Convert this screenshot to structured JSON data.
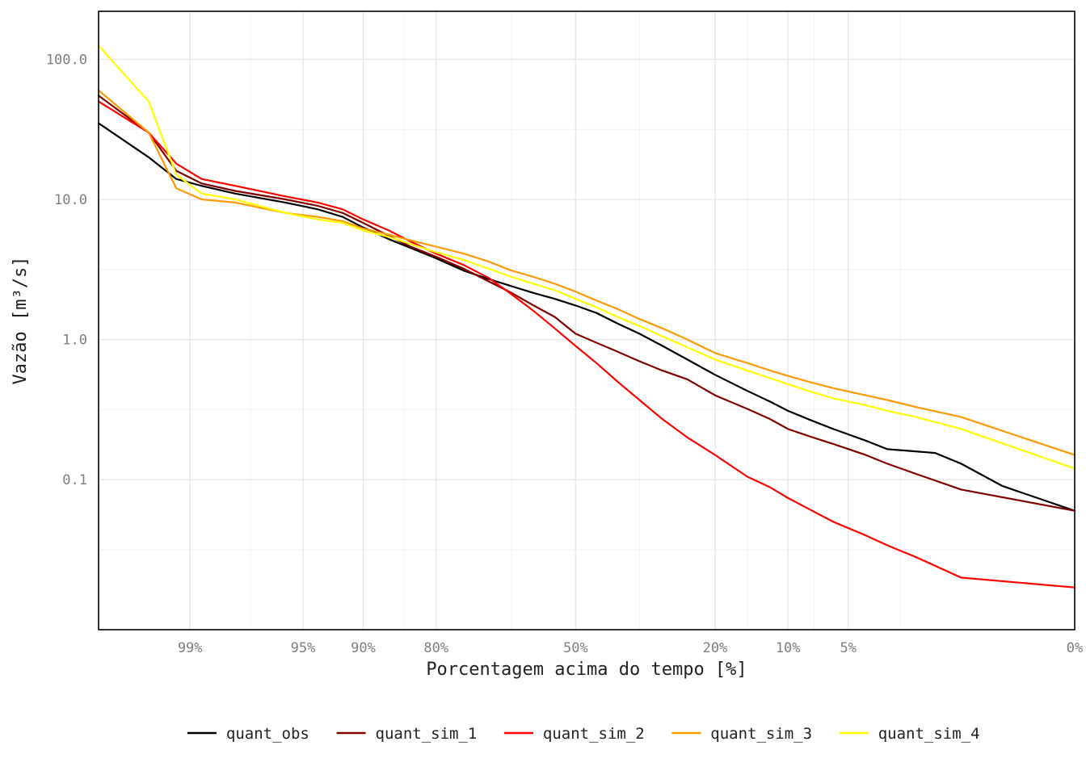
{
  "chart_data": {
    "type": "line",
    "title": "",
    "xlabel": "Porcentagem acima do tempo [%]",
    "ylabel": "Vazão [m³/s]",
    "x_scale": "normal-probability",
    "y_scale": "log10",
    "x_range": [
      99.8,
      -0.5
    ],
    "y_range": [
      0.0085,
      220
    ],
    "x_ticks": [
      {
        "value": 99,
        "label": "99%"
      },
      {
        "value": 95,
        "label": "95%"
      },
      {
        "value": 90,
        "label": "90%"
      },
      {
        "value": 80,
        "label": "80%"
      },
      {
        "value": 50,
        "label": "50%"
      },
      {
        "value": 20,
        "label": "20%"
      },
      {
        "value": 10,
        "label": "10%"
      },
      {
        "value": 5,
        "label": "5%"
      },
      {
        "value": 0,
        "label": "0%"
      }
    ],
    "x_minor_ticks": [
      97.5,
      85,
      65,
      35,
      15,
      7.5,
      2.5
    ],
    "y_ticks": [
      {
        "value": 100,
        "label": "100.0"
      },
      {
        "value": 10,
        "label": "10.0"
      },
      {
        "value": 1,
        "label": "1.0"
      },
      {
        "value": 0.1,
        "label": "0.1"
      }
    ],
    "grid": true,
    "legend_position": "bottom",
    "series": [
      {
        "name": "quant_obs",
        "color": "#000000",
        "points": [
          [
            99.8,
            35
          ],
          [
            99.5,
            20
          ],
          [
            99.2,
            14
          ],
          [
            98.8,
            12.5
          ],
          [
            98,
            11
          ],
          [
            96,
            9.5
          ],
          [
            94,
            8.5
          ],
          [
            92,
            7.5
          ],
          [
            90,
            6.3
          ],
          [
            87,
            5.2
          ],
          [
            84,
            4.5
          ],
          [
            80,
            3.8
          ],
          [
            75,
            3.1
          ],
          [
            70,
            2.7
          ],
          [
            65,
            2.4
          ],
          [
            60,
            2.15
          ],
          [
            55,
            1.95
          ],
          [
            50,
            1.75
          ],
          [
            45,
            1.55
          ],
          [
            40,
            1.3
          ],
          [
            35,
            1.1
          ],
          [
            30,
            0.9
          ],
          [
            25,
            0.72
          ],
          [
            20,
            0.56
          ],
          [
            15,
            0.43
          ],
          [
            12,
            0.36
          ],
          [
            10,
            0.31
          ],
          [
            8,
            0.27
          ],
          [
            6,
            0.23
          ],
          [
            4,
            0.19
          ],
          [
            3,
            0.165
          ],
          [
            1.5,
            0.155
          ],
          [
            1,
            0.13
          ],
          [
            0.5,
            0.09
          ],
          [
            0,
            0.06
          ]
        ]
      },
      {
        "name": "quant_sim_1",
        "color": "#800000",
        "points": [
          [
            99.8,
            55
          ],
          [
            99.5,
            30
          ],
          [
            99.2,
            16
          ],
          [
            98.8,
            13
          ],
          [
            98,
            11.5
          ],
          [
            96,
            10
          ],
          [
            94,
            9
          ],
          [
            92,
            8
          ],
          [
            90,
            6.8
          ],
          [
            87,
            5.5
          ],
          [
            84,
            4.6
          ],
          [
            80,
            3.9
          ],
          [
            75,
            3.2
          ],
          [
            70,
            2.6
          ],
          [
            65,
            2.15
          ],
          [
            60,
            1.75
          ],
          [
            55,
            1.45
          ],
          [
            50,
            1.1
          ],
          [
            45,
            0.95
          ],
          [
            40,
            0.82
          ],
          [
            35,
            0.7
          ],
          [
            30,
            0.6
          ],
          [
            25,
            0.52
          ],
          [
            20,
            0.4
          ],
          [
            15,
            0.32
          ],
          [
            12,
            0.27
          ],
          [
            10,
            0.23
          ],
          [
            8,
            0.205
          ],
          [
            6,
            0.18
          ],
          [
            4,
            0.15
          ],
          [
            3,
            0.13
          ],
          [
            2,
            0.11
          ],
          [
            1,
            0.085
          ],
          [
            0,
            0.06
          ]
        ]
      },
      {
        "name": "quant_sim_2",
        "color": "#ff0000",
        "points": [
          [
            99.8,
            50
          ],
          [
            99.5,
            30
          ],
          [
            99.2,
            18
          ],
          [
            98.8,
            14
          ],
          [
            98,
            12.5
          ],
          [
            96,
            10.5
          ],
          [
            94,
            9.5
          ],
          [
            92,
            8.5
          ],
          [
            90,
            7.2
          ],
          [
            87,
            6
          ],
          [
            84,
            5
          ],
          [
            80,
            4.1
          ],
          [
            75,
            3.4
          ],
          [
            70,
            2.75
          ],
          [
            65,
            2.1
          ],
          [
            60,
            1.6
          ],
          [
            55,
            1.2
          ],
          [
            50,
            0.9
          ],
          [
            45,
            0.68
          ],
          [
            40,
            0.5
          ],
          [
            35,
            0.37
          ],
          [
            30,
            0.27
          ],
          [
            25,
            0.2
          ],
          [
            20,
            0.15
          ],
          [
            15,
            0.105
          ],
          [
            12,
            0.088
          ],
          [
            10,
            0.074
          ],
          [
            8,
            0.062
          ],
          [
            6,
            0.05
          ],
          [
            4,
            0.04
          ],
          [
            3,
            0.034
          ],
          [
            2,
            0.028
          ],
          [
            1,
            0.02
          ],
          [
            0,
            0.017
          ]
        ]
      },
      {
        "name": "quant_sim_3",
        "color": "#ff9900",
        "points": [
          [
            99.8,
            60
          ],
          [
            99.5,
            30
          ],
          [
            99.2,
            12
          ],
          [
            98.8,
            10
          ],
          [
            98,
            9.5
          ],
          [
            96,
            8
          ],
          [
            94,
            7.5
          ],
          [
            92,
            7
          ],
          [
            90,
            6.2
          ],
          [
            87,
            5.6
          ],
          [
            84,
            5.1
          ],
          [
            80,
            4.6
          ],
          [
            75,
            4.1
          ],
          [
            70,
            3.6
          ],
          [
            65,
            3.1
          ],
          [
            60,
            2.8
          ],
          [
            55,
            2.5
          ],
          [
            50,
            2.2
          ],
          [
            45,
            1.9
          ],
          [
            40,
            1.65
          ],
          [
            35,
            1.4
          ],
          [
            30,
            1.2
          ],
          [
            25,
            1.0
          ],
          [
            20,
            0.8
          ],
          [
            15,
            0.68
          ],
          [
            12,
            0.6
          ],
          [
            10,
            0.55
          ],
          [
            8,
            0.5
          ],
          [
            6,
            0.45
          ],
          [
            4,
            0.4
          ],
          [
            3,
            0.37
          ],
          [
            2,
            0.33
          ],
          [
            1,
            0.28
          ],
          [
            0,
            0.15
          ]
        ]
      },
      {
        "name": "quant_sim_4",
        "color": "#ffff00",
        "points": [
          [
            99.8,
            125
          ],
          [
            99.5,
            50
          ],
          [
            99.2,
            15
          ],
          [
            98.8,
            11
          ],
          [
            98,
            10
          ],
          [
            96,
            8
          ],
          [
            94,
            7.2
          ],
          [
            92,
            6.8
          ],
          [
            90,
            6
          ],
          [
            87,
            5.4
          ],
          [
            84,
            4.8
          ],
          [
            80,
            4.2
          ],
          [
            75,
            3.7
          ],
          [
            70,
            3.2
          ],
          [
            65,
            2.8
          ],
          [
            60,
            2.5
          ],
          [
            55,
            2.25
          ],
          [
            50,
            1.95
          ],
          [
            45,
            1.7
          ],
          [
            40,
            1.45
          ],
          [
            35,
            1.25
          ],
          [
            30,
            1.05
          ],
          [
            25,
            0.88
          ],
          [
            20,
            0.72
          ],
          [
            15,
            0.6
          ],
          [
            12,
            0.53
          ],
          [
            10,
            0.48
          ],
          [
            8,
            0.43
          ],
          [
            6,
            0.38
          ],
          [
            4,
            0.34
          ],
          [
            3,
            0.31
          ],
          [
            2,
            0.28
          ],
          [
            1,
            0.23
          ],
          [
            0,
            0.12
          ]
        ]
      }
    ]
  }
}
